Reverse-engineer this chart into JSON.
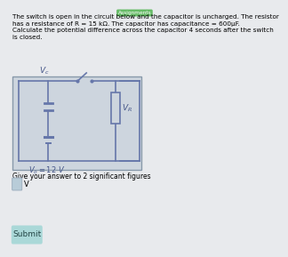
{
  "bg_color": "#e8eaed",
  "title_lines": [
    "The switch is open in the circuit below and the capacitor is uncharged. The resistor",
    "has a resistance of R = 15 kΩ. The capacitor has capacitance = 600μF.",
    "Calculate the potential difference across the capacitor 4 seconds after the switch",
    "is closed."
  ],
  "circuit_bg": "#cdd5de",
  "circuit_border": "#8899aa",
  "wire_color": "#6677aa",
  "label_vc": "$V_c$",
  "label_vr": "$V_R$",
  "label_v0": "$V_o = 12\\ V$",
  "answer_label": "Give your answer to 2 significant figures",
  "input_box_color": "#b8ccd8",
  "submit_bg": "#aad8d8",
  "submit_text": "Submit",
  "unit_label": "V",
  "badge_color": "#66bb66",
  "title_fontsize": 5.2,
  "answer_fontsize": 5.5,
  "label_fontsize": 6.5
}
